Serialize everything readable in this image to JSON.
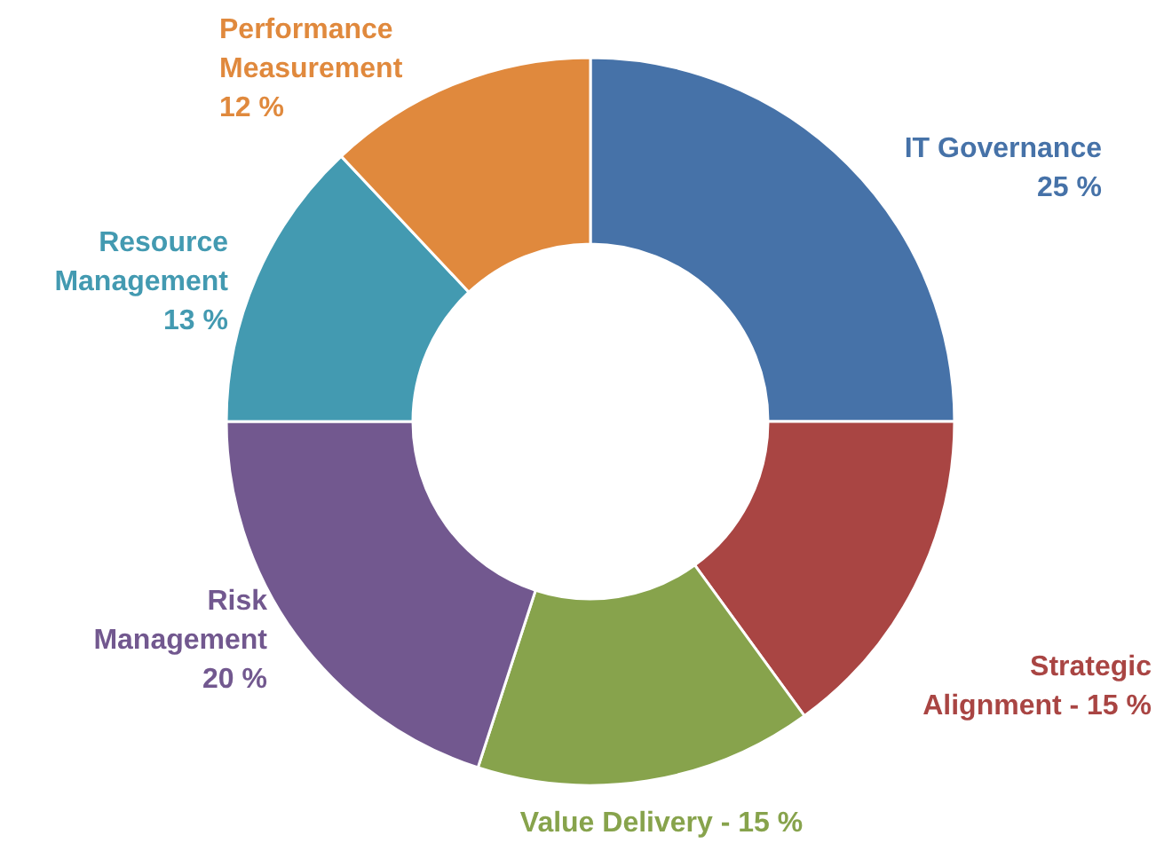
{
  "chart_data": {
    "type": "donut",
    "categories": [
      "IT Governance",
      "Strategic\nAlignment -",
      "Value Delivery -",
      "Risk\nManagement",
      "Resource\nManagement",
      "Performance\nMeasurement"
    ],
    "values": [
      25,
      15,
      15,
      20,
      13,
      12
    ],
    "colors": [
      "#4672a8",
      "#a94543",
      "#87a34c",
      "#72588f",
      "#439ab1",
      "#e0893d"
    ],
    "value_labels": [
      "25 %",
      "15 %",
      "15 %",
      "20 %",
      "13 %",
      "12 %"
    ]
  }
}
